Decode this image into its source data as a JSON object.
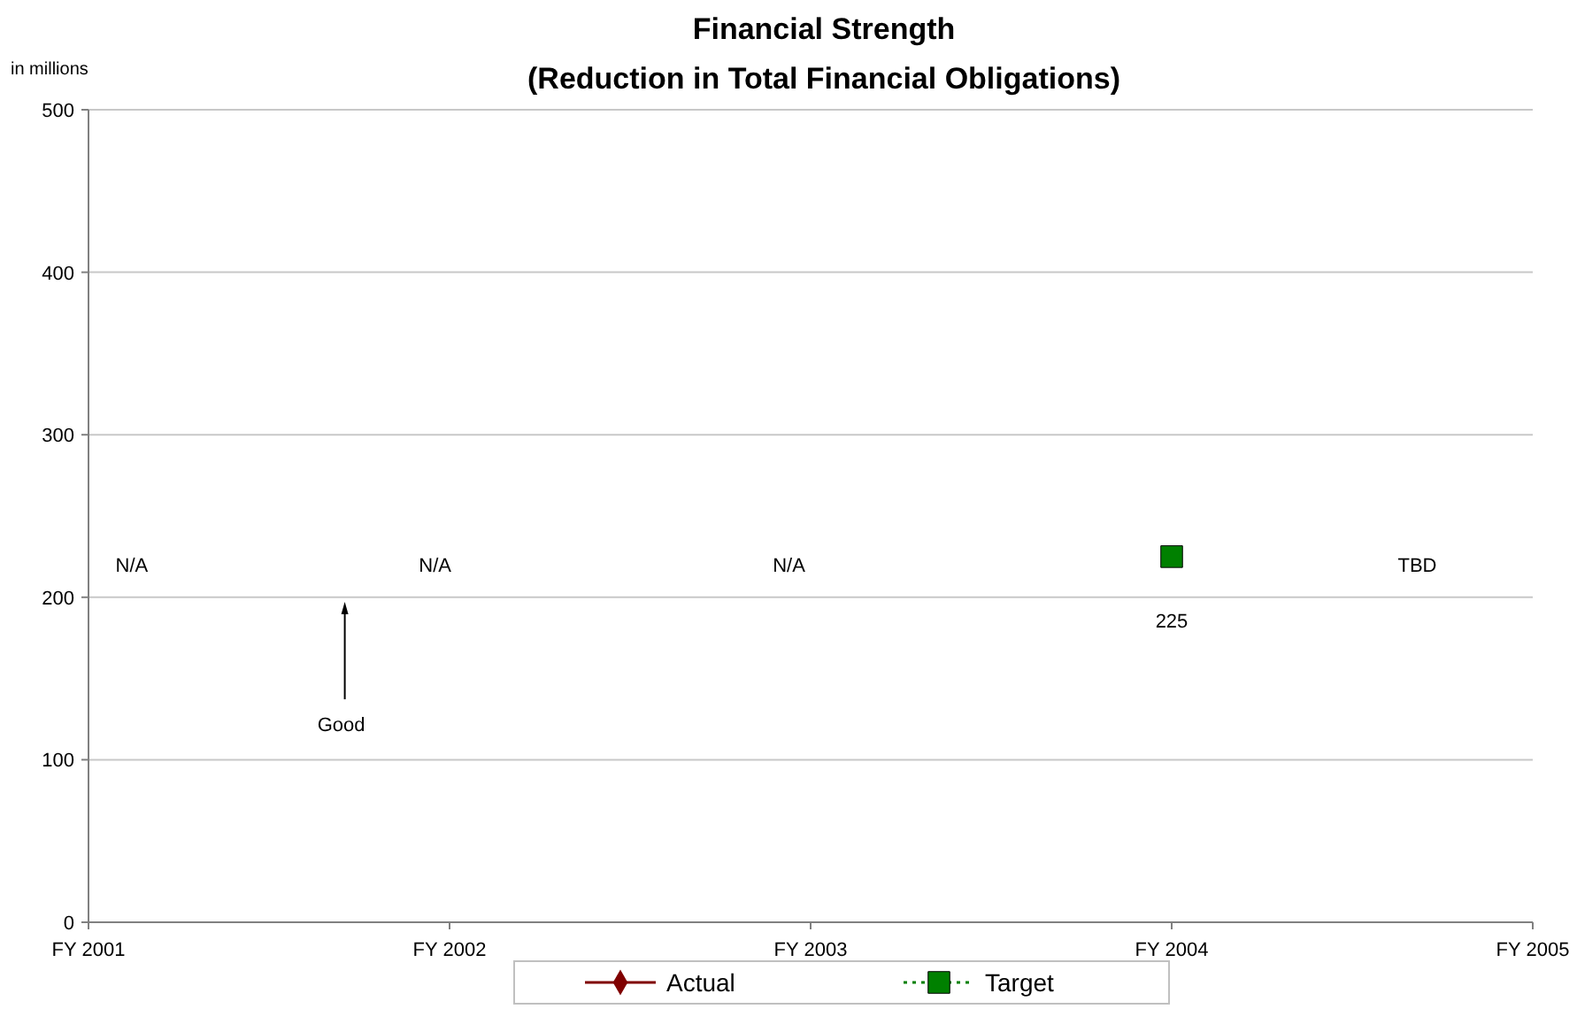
{
  "chart_data": {
    "type": "line",
    "title": "Financial Strength",
    "subtitle": "(Reduction in Total Financial Obligations)",
    "ylabel": "in millions",
    "categories": [
      "FY 2001",
      "FY 2002",
      "FY 2003",
      "FY 2004",
      "FY 2005"
    ],
    "ylim": [
      0,
      500
    ],
    "yticks": [
      0,
      100,
      200,
      300,
      400,
      500
    ],
    "grid": "y",
    "legend": "bottom",
    "series": [
      {
        "name": "Actual",
        "color": "#800000",
        "values": [
          null,
          null,
          null,
          null,
          null
        ],
        "marker": "diamond",
        "line_style": "solid"
      },
      {
        "name": "Target",
        "color": "#008000",
        "values": [
          null,
          null,
          null,
          225,
          null
        ],
        "value_labels": [
          null,
          null,
          null,
          "225",
          null
        ],
        "marker": "square",
        "line_style": "dotted"
      }
    ],
    "annotations": [
      "N/A",
      "N/A",
      "N/A",
      "TBD",
      "Good"
    ]
  }
}
